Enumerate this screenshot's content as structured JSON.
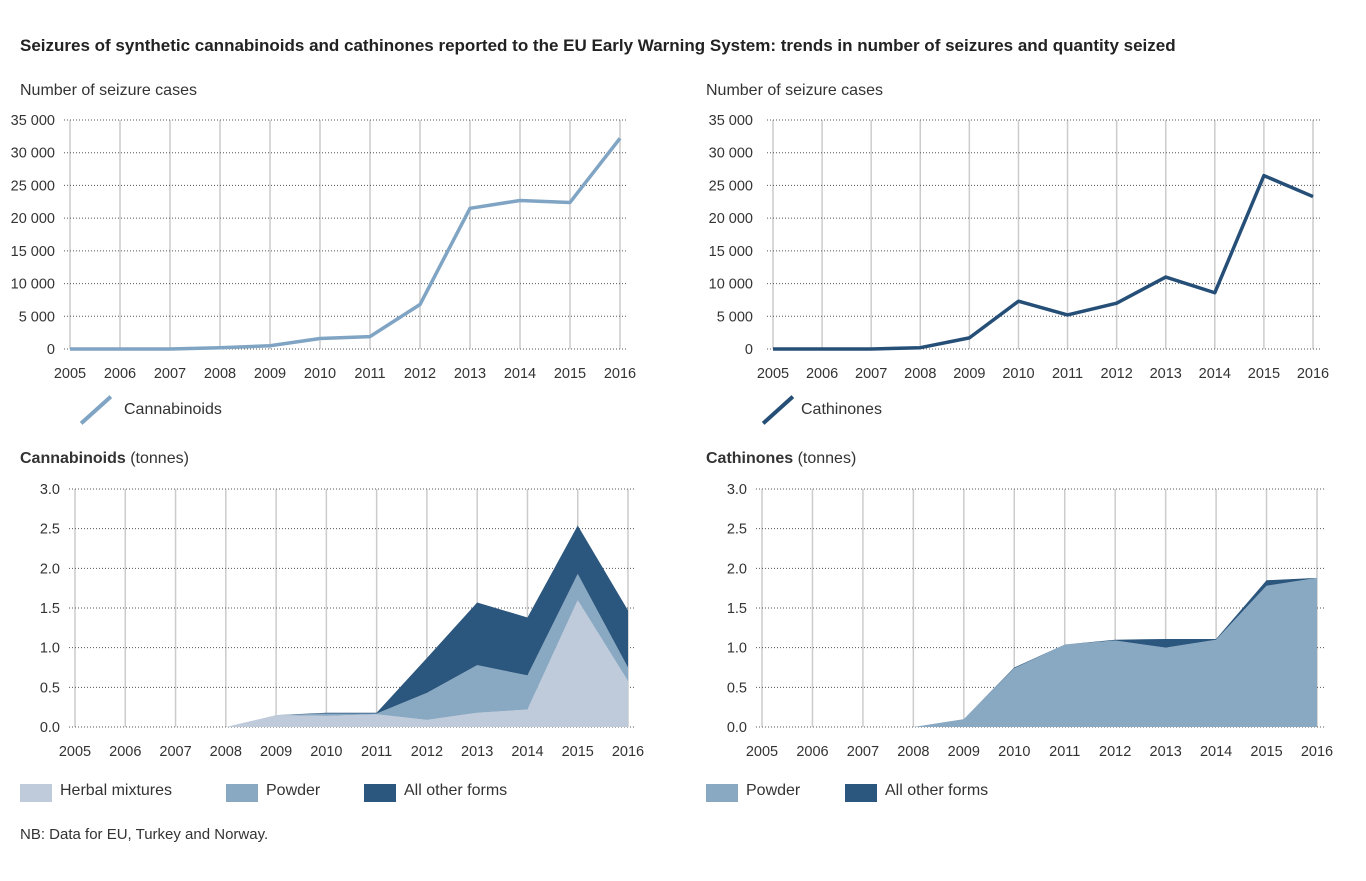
{
  "title": "Seizures of synthetic cannabinoids and cathinones reported to the EU Early Warning System: trends in number of seizures and quantity seized",
  "note": "NB: Data for EU, Turkey and Norway.",
  "colors": {
    "cannabinoids_line": "#80a4c3",
    "cathinones_line": "#264f78",
    "herbal": "#bfcadb",
    "powder": "#89a8c2",
    "other": "#2b567d"
  },
  "chart_data": [
    {
      "type": "line",
      "ylabel": "Number of seizure cases",
      "x": [
        "2005",
        "2006",
        "2007",
        "2008",
        "2009",
        "2010",
        "2011",
        "2012",
        "2013",
        "2014",
        "2015",
        "2016"
      ],
      "yticks": [
        "0",
        "5 000",
        "10 000",
        "15 000",
        "20 000",
        "25 000",
        "30 000",
        "35 000"
      ],
      "ylim": [
        0,
        35000
      ],
      "grid": true,
      "series": [
        {
          "name": "Cannabinoids",
          "values": [
            0,
            0,
            0,
            200,
            500,
            1600,
            1900,
            6800,
            21500,
            22700,
            22400,
            32200
          ]
        }
      ],
      "legend": "bottom-left"
    },
    {
      "type": "line",
      "ylabel": "Number of seizure cases",
      "x": [
        "2005",
        "2006",
        "2007",
        "2008",
        "2009",
        "2010",
        "2011",
        "2012",
        "2013",
        "2014",
        "2015",
        "2016"
      ],
      "yticks": [
        "0",
        "5 000",
        "10 000",
        "15 000",
        "20 000",
        "25 000",
        "30 000",
        "35 000"
      ],
      "ylim": [
        0,
        35000
      ],
      "grid": true,
      "series": [
        {
          "name": "Cathinones",
          "values": [
            0,
            0,
            0,
            200,
            1700,
            7300,
            5200,
            7000,
            11000,
            8600,
            26500,
            23300
          ]
        }
      ],
      "legend": "bottom-left"
    },
    {
      "type": "area",
      "stacked": true,
      "title_bold": "Cannabinoids",
      "title_rest": " (tonnes)",
      "x": [
        "2005",
        "2006",
        "2007",
        "2008",
        "2009",
        "2010",
        "2011",
        "2012",
        "2013",
        "2014",
        "2015",
        "2016"
      ],
      "yticks": [
        "0.0",
        "0.5",
        "1.0",
        "1.5",
        "2.0",
        "2.5",
        "3.0"
      ],
      "ylim": [
        0,
        3
      ],
      "grid": true,
      "series": [
        {
          "name": "Herbal mixtures",
          "values": [
            0,
            0,
            0,
            0,
            0.15,
            0.14,
            0.16,
            0.09,
            0.18,
            0.22,
            1.6,
            0.58
          ]
        },
        {
          "name": "Powder",
          "values": [
            0,
            0,
            0,
            0,
            0,
            0.03,
            0.01,
            0.34,
            0.6,
            0.43,
            0.33,
            0.17
          ]
        },
        {
          "name": "All other forms",
          "values": [
            0,
            0,
            0,
            0,
            0,
            0.01,
            0.01,
            0.44,
            0.79,
            0.73,
            0.61,
            0.72
          ]
        }
      ],
      "legend": "bottom-left"
    },
    {
      "type": "area",
      "stacked": true,
      "title_bold": "Cathinones",
      "title_rest": " (tonnes)",
      "x": [
        "2005",
        "2006",
        "2007",
        "2008",
        "2009",
        "2010",
        "2011",
        "2012",
        "2013",
        "2014",
        "2015",
        "2016"
      ],
      "yticks": [
        "0.0",
        "0.5",
        "1.0",
        "1.5",
        "2.0",
        "2.5",
        "3.0"
      ],
      "ylim": [
        0,
        3
      ],
      "grid": true,
      "series": [
        {
          "name": "Powder",
          "values": [
            0,
            0,
            0,
            0,
            0.1,
            0.74,
            1.04,
            1.09,
            1.0,
            1.1,
            1.78,
            1.88
          ]
        },
        {
          "name": "All other forms",
          "values": [
            0,
            0,
            0,
            0,
            0,
            0.01,
            0,
            0.01,
            0.11,
            0.01,
            0.07,
            0
          ]
        }
      ],
      "legend": "bottom-left"
    }
  ]
}
